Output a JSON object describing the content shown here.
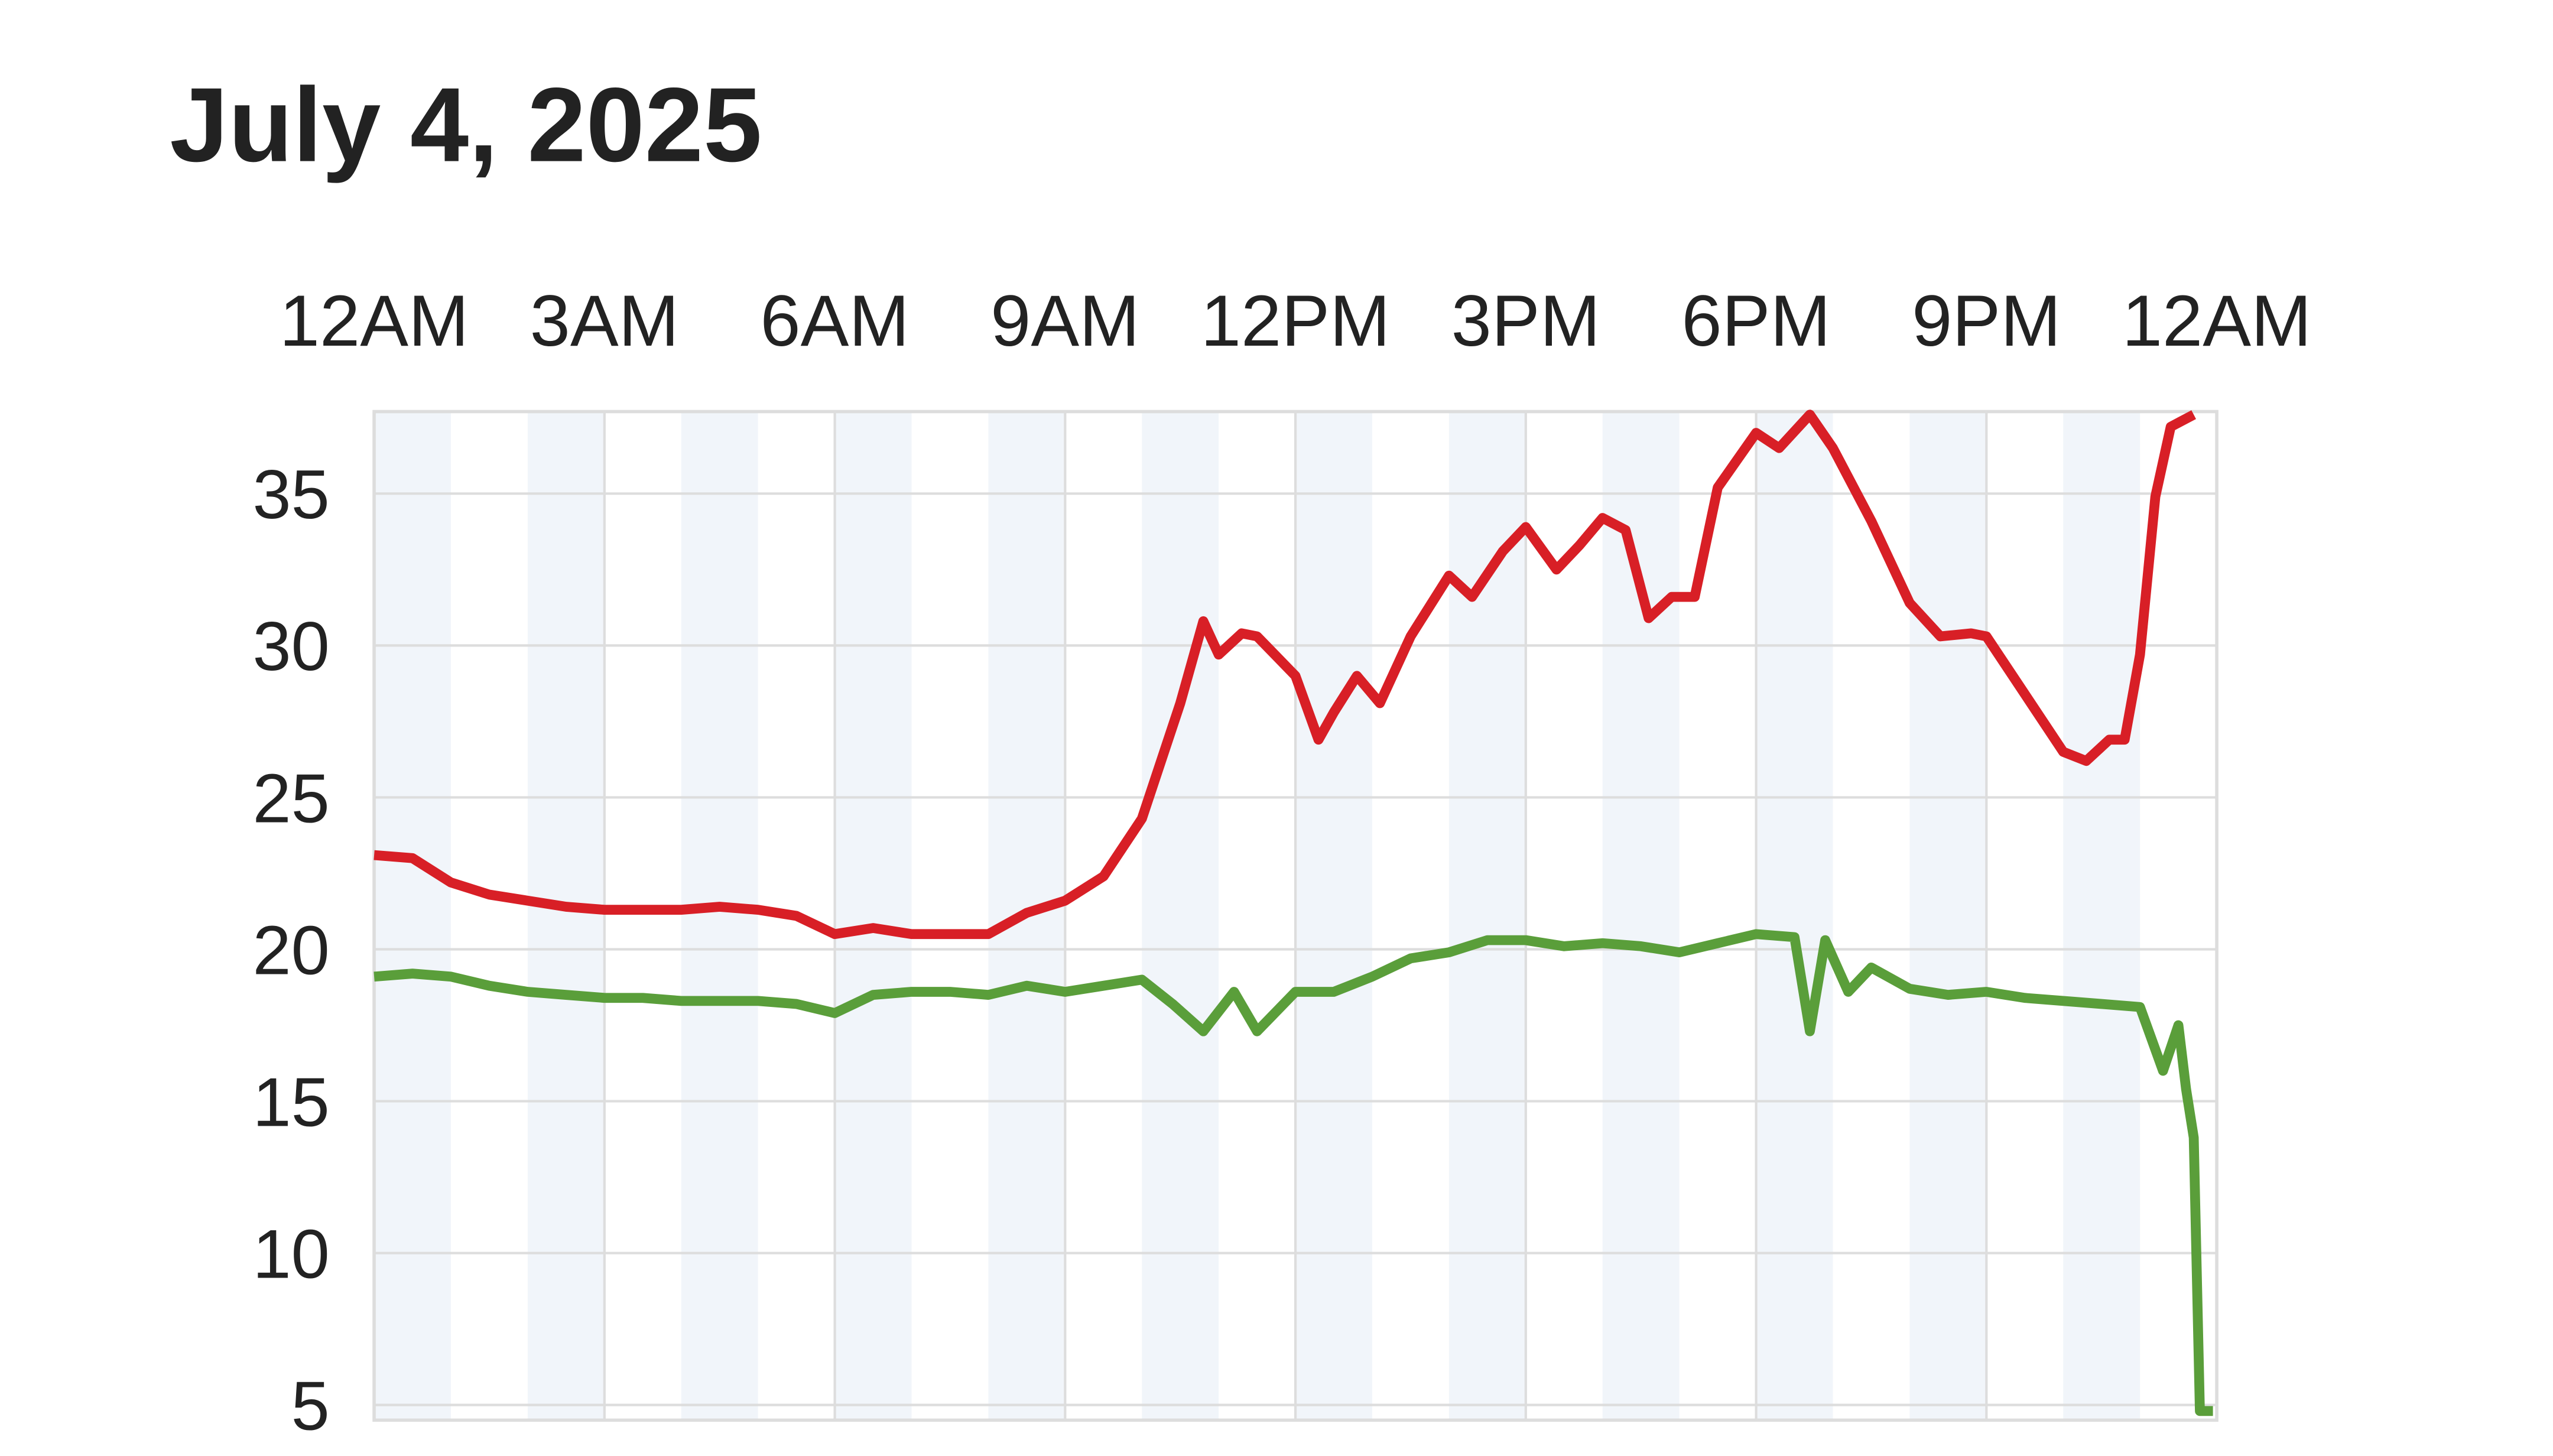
{
  "chart_data": {
    "type": "line",
    "title": "July 4, 2025",
    "xlim": [
      0,
      24
    ],
    "xticks": [
      {
        "value": 0,
        "label": "12AM"
      },
      {
        "value": 3,
        "label": "3AM"
      },
      {
        "value": 6,
        "label": "6AM"
      },
      {
        "value": 9,
        "label": "9AM"
      },
      {
        "value": 12,
        "label": "12PM"
      },
      {
        "value": 15,
        "label": "3PM"
      },
      {
        "value": 18,
        "label": "6PM"
      },
      {
        "value": 21,
        "label": "9PM"
      },
      {
        "value": 24,
        "label": "12AM"
      }
    ],
    "ylim": [
      4.5,
      37.7
    ],
    "yticks": [
      5,
      10,
      15,
      20,
      25,
      30,
      35
    ],
    "grid": true,
    "series": [
      {
        "color": "#d81f26",
        "x": [
          0,
          0.5,
          1,
          1.5,
          2,
          2.5,
          3,
          3.5,
          4,
          4.5,
          5,
          5.5,
          6,
          6.5,
          7,
          7.5,
          8,
          8.5,
          9,
          9.5,
          10,
          10.5,
          10.8,
          11,
          11.3,
          11.5,
          12,
          12.3,
          12.5,
          12.8,
          13.1,
          13.5,
          14,
          14.3,
          14.7,
          15,
          15.4,
          15.7,
          16,
          16.3,
          16.6,
          16.9,
          17.2,
          17.5,
          18,
          18.3,
          18.7,
          19,
          19.5,
          20,
          20.4,
          20.8,
          21,
          21.5,
          22,
          22.3,
          22.6,
          22.8,
          23,
          23.2,
          23.4,
          23.7
        ],
        "values": [
          23.1,
          23.0,
          22.2,
          21.8,
          21.6,
          21.4,
          21.3,
          21.3,
          21.3,
          21.4,
          21.3,
          21.1,
          20.5,
          20.7,
          20.5,
          20.5,
          20.5,
          21.2,
          21.6,
          22.4,
          24.3,
          28.1,
          30.8,
          29.7,
          30.4,
          30.3,
          29.0,
          26.9,
          27.8,
          29.0,
          28.1,
          30.3,
          32.3,
          31.6,
          33.1,
          33.9,
          32.5,
          33.3,
          34.2,
          33.8,
          30.9,
          31.6,
          31.6,
          35.2,
          37.0,
          36.5,
          37.6,
          36.5,
          34.1,
          31.4,
          30.3,
          30.4,
          30.3,
          28.4,
          26.5,
          26.2,
          26.9,
          26.9,
          29.7,
          34.9,
          37.2,
          37.6
        ]
      },
      {
        "color": "#5a9e3a",
        "x": [
          0,
          0.5,
          1,
          1.5,
          2,
          2.5,
          3,
          3.5,
          4,
          4.5,
          5,
          5.5,
          6,
          6.5,
          7,
          7.5,
          8,
          8.5,
          9,
          9.5,
          10,
          10.4,
          10.8,
          11.2,
          11.5,
          12,
          12.5,
          13,
          13.5,
          14,
          14.5,
          15,
          15.5,
          16,
          16.5,
          17,
          17.5,
          18,
          18.5,
          18.7,
          18.9,
          19.2,
          19.5,
          20,
          20.5,
          21,
          21.5,
          22,
          22.5,
          23,
          23.3,
          23.5,
          23.6,
          23.7,
          23.78,
          23.95
        ],
        "values": [
          19.1,
          19.2,
          19.1,
          18.8,
          18.6,
          18.5,
          18.4,
          18.4,
          18.3,
          18.3,
          18.3,
          18.2,
          17.9,
          18.5,
          18.6,
          18.6,
          18.5,
          18.8,
          18.6,
          18.8,
          19.0,
          18.2,
          17.3,
          18.6,
          17.3,
          18.6,
          18.6,
          19.1,
          19.7,
          19.9,
          20.3,
          20.3,
          20.1,
          20.2,
          20.1,
          19.9,
          20.2,
          20.5,
          20.4,
          17.3,
          20.3,
          18.6,
          19.4,
          18.7,
          18.5,
          18.6,
          18.4,
          18.3,
          18.2,
          18.1,
          16.0,
          17.5,
          15.4,
          13.8,
          4.8,
          4.8
        ]
      }
    ]
  }
}
